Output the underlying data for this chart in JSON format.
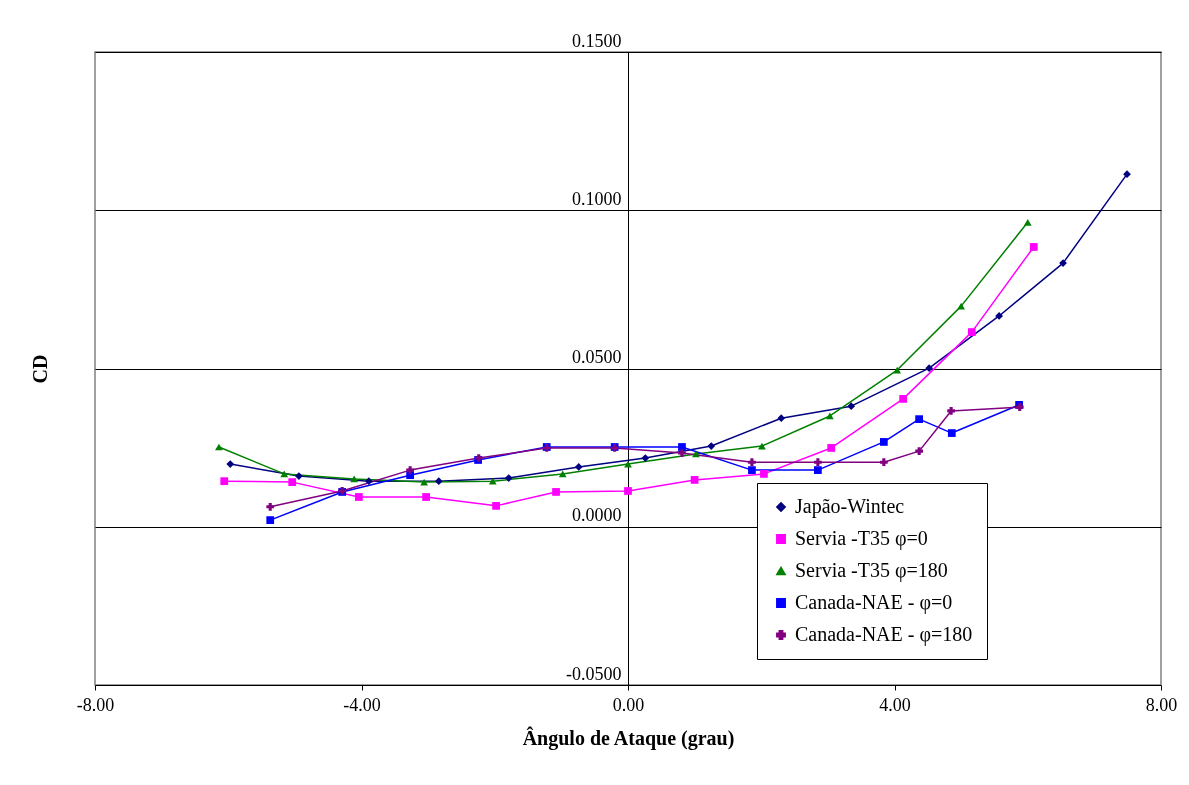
{
  "chart_data": {
    "type": "line",
    "xlabel": "Ângulo de Ataque (grau)",
    "ylabel": "CD",
    "xlim": [
      -8,
      8
    ],
    "xticks": [
      {
        "value": -8,
        "label": "-8.00"
      },
      {
        "value": -4,
        "label": "-4.00"
      },
      {
        "value": 0,
        "label": "0.00"
      },
      {
        "value": 4,
        "label": "4.00"
      },
      {
        "value": 8,
        "label": "8.00"
      }
    ],
    "ylim": [
      -0.05,
      0.15
    ],
    "yticks": [
      {
        "value": -0.05,
        "label": "-0.0500"
      },
      {
        "value": 0,
        "label": "0.0000"
      },
      {
        "value": 0.05,
        "label": "0.0500"
      },
      {
        "value": 0.1,
        "label": "0.1000"
      },
      {
        "value": 0.15,
        "label": "0.1500"
      }
    ],
    "grid": "y",
    "legend": "bottom right",
    "series": [
      {
        "name": "Japão-Wintec",
        "color": "#000080",
        "marker": "diamond",
        "x": [
          -5.97,
          -4.94,
          -3.89,
          -2.84,
          -1.79,
          -0.74,
          0.26,
          1.25,
          2.3,
          3.35,
          4.52,
          5.57,
          6.53,
          7.49
        ],
        "values": [
          0.0198,
          0.016,
          0.0144,
          0.0144,
          0.0154,
          0.0189,
          0.0217,
          0.0255,
          0.0343,
          0.0381,
          0.0501,
          0.0666,
          0.0833,
          0.1114
        ]
      },
      {
        "name": "Servia -T35 φ=0",
        "color": "#ff00ff",
        "marker": "square",
        "x": [
          -6.06,
          -5.04,
          -4.04,
          -3.03,
          -1.98,
          -1.08,
          0,
          1,
          2.04,
          3.05,
          4.13,
          5.16,
          6.09
        ],
        "values": [
          0.0144,
          0.0141,
          0.0094,
          0.0094,
          0.0066,
          0.011,
          0.0113,
          0.0148,
          0.0167,
          0.0249,
          0.0404,
          0.0615,
          0.0884
        ]
      },
      {
        "name": "Servia -T35 φ=180",
        "color": "#008000",
        "marker": "triangle",
        "x": [
          -6.14,
          -5.16,
          -4.11,
          -3.06,
          -2.03,
          -0.98,
          0,
          1.02,
          2.01,
          3.03,
          4.04,
          5,
          6
        ],
        "values": [
          0.0252,
          0.0167,
          0.0151,
          0.0141,
          0.0144,
          0.0167,
          0.0198,
          0.023,
          0.0255,
          0.035,
          0.0495,
          0.0697,
          0.0962
        ]
      },
      {
        "name": "Canada-NAE - φ=0",
        "color": "#0000ff",
        "marker": "square",
        "x": [
          -5.37,
          -4.29,
          -3.27,
          -2.25,
          -1.22,
          -0.2,
          0.81,
          1.86,
          2.85,
          3.84,
          4.37,
          4.86,
          5.87
        ],
        "values": [
          0.0021,
          0.011,
          0.0163,
          0.0211,
          0.0252,
          0.0252,
          0.0252,
          0.0179,
          0.0179,
          0.0268,
          0.034,
          0.0296,
          0.0385
        ]
      },
      {
        "name": "Canada-NAE - φ=180",
        "color": "#800080",
        "marker": "cross",
        "x": [
          -5.37,
          -4.29,
          -3.27,
          -2.24,
          -1.22,
          -0.2,
          0.81,
          1.86,
          2.85,
          3.84,
          4.37,
          4.85,
          5.88
        ],
        "values": [
          0.0063,
          0.0113,
          0.0179,
          0.0217,
          0.0249,
          0.0249,
          0.0233,
          0.0204,
          0.0204,
          0.0204,
          0.0239,
          0.0366,
          0.0378
        ]
      }
    ]
  }
}
